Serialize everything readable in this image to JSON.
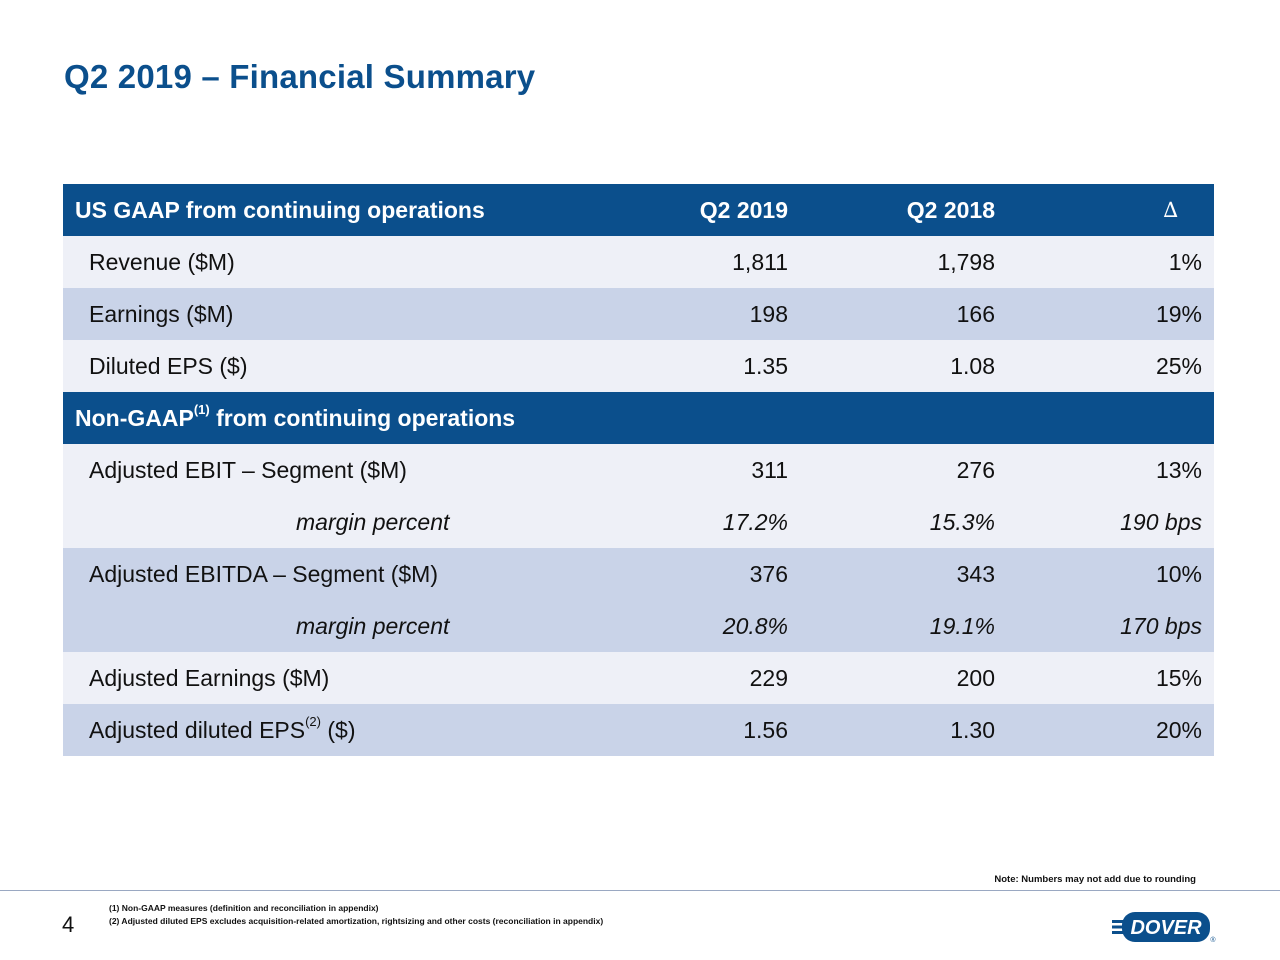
{
  "title": "Q2 2019 – Financial Summary",
  "table": {
    "gaap_header": {
      "label": "US GAAP from continuing operations",
      "col1": "Q2 2019",
      "col2": "Q2 2018",
      "col3": "∆"
    },
    "gaap_rows": [
      {
        "label": "Revenue ($M)",
        "v1": "1,811",
        "v2": "1,798",
        "v3": "1%"
      },
      {
        "label": "Earnings ($M)",
        "v1": "198",
        "v2": "166",
        "v3": "19%"
      },
      {
        "label": "Diluted EPS ($)",
        "v1": "1.35",
        "v2": "1.08",
        "v3": "25%"
      }
    ],
    "nongaap_header": {
      "label_pre": "Non-GAAP",
      "label_sup": "(1)",
      "label_post": " from continuing operations"
    },
    "nongaap_rows": [
      {
        "label": "Adjusted EBIT – Segment ($M)",
        "v1": "311",
        "v2": "276",
        "v3": "13%"
      },
      {
        "label": "margin percent",
        "v1": "17.2%",
        "v2": "15.3%",
        "v3": "190 bps"
      },
      {
        "label": "Adjusted EBITDA – Segment ($M)",
        "v1": "376",
        "v2": "343",
        "v3": "10%"
      },
      {
        "label": "margin percent",
        "v1": "20.8%",
        "v2": "19.1%",
        "v3": "170 bps"
      },
      {
        "label": "Adjusted Earnings ($M)",
        "v1": "229",
        "v2": "200",
        "v3": "15%"
      },
      {
        "label_pre": "Adjusted diluted EPS",
        "label_sup": "(2)",
        "label_post": " ($)",
        "v1": "1.56",
        "v2": "1.30",
        "v3": "20%"
      }
    ]
  },
  "note": "Note: Numbers may not add due to rounding",
  "footnotes": [
    "(1) Non-GAAP measures (definition and reconciliation in appendix)",
    "(2) Adjusted diluted EPS excludes acquisition-related amortization, rightsizing and other costs (reconciliation in appendix)"
  ],
  "page_number": "4",
  "logo": {
    "text": "DOVER",
    "registered": "®"
  },
  "colors": {
    "brand_blue": "#0b4f8c",
    "row_light": "#eef0f7",
    "row_dark": "#c9d3e8"
  }
}
